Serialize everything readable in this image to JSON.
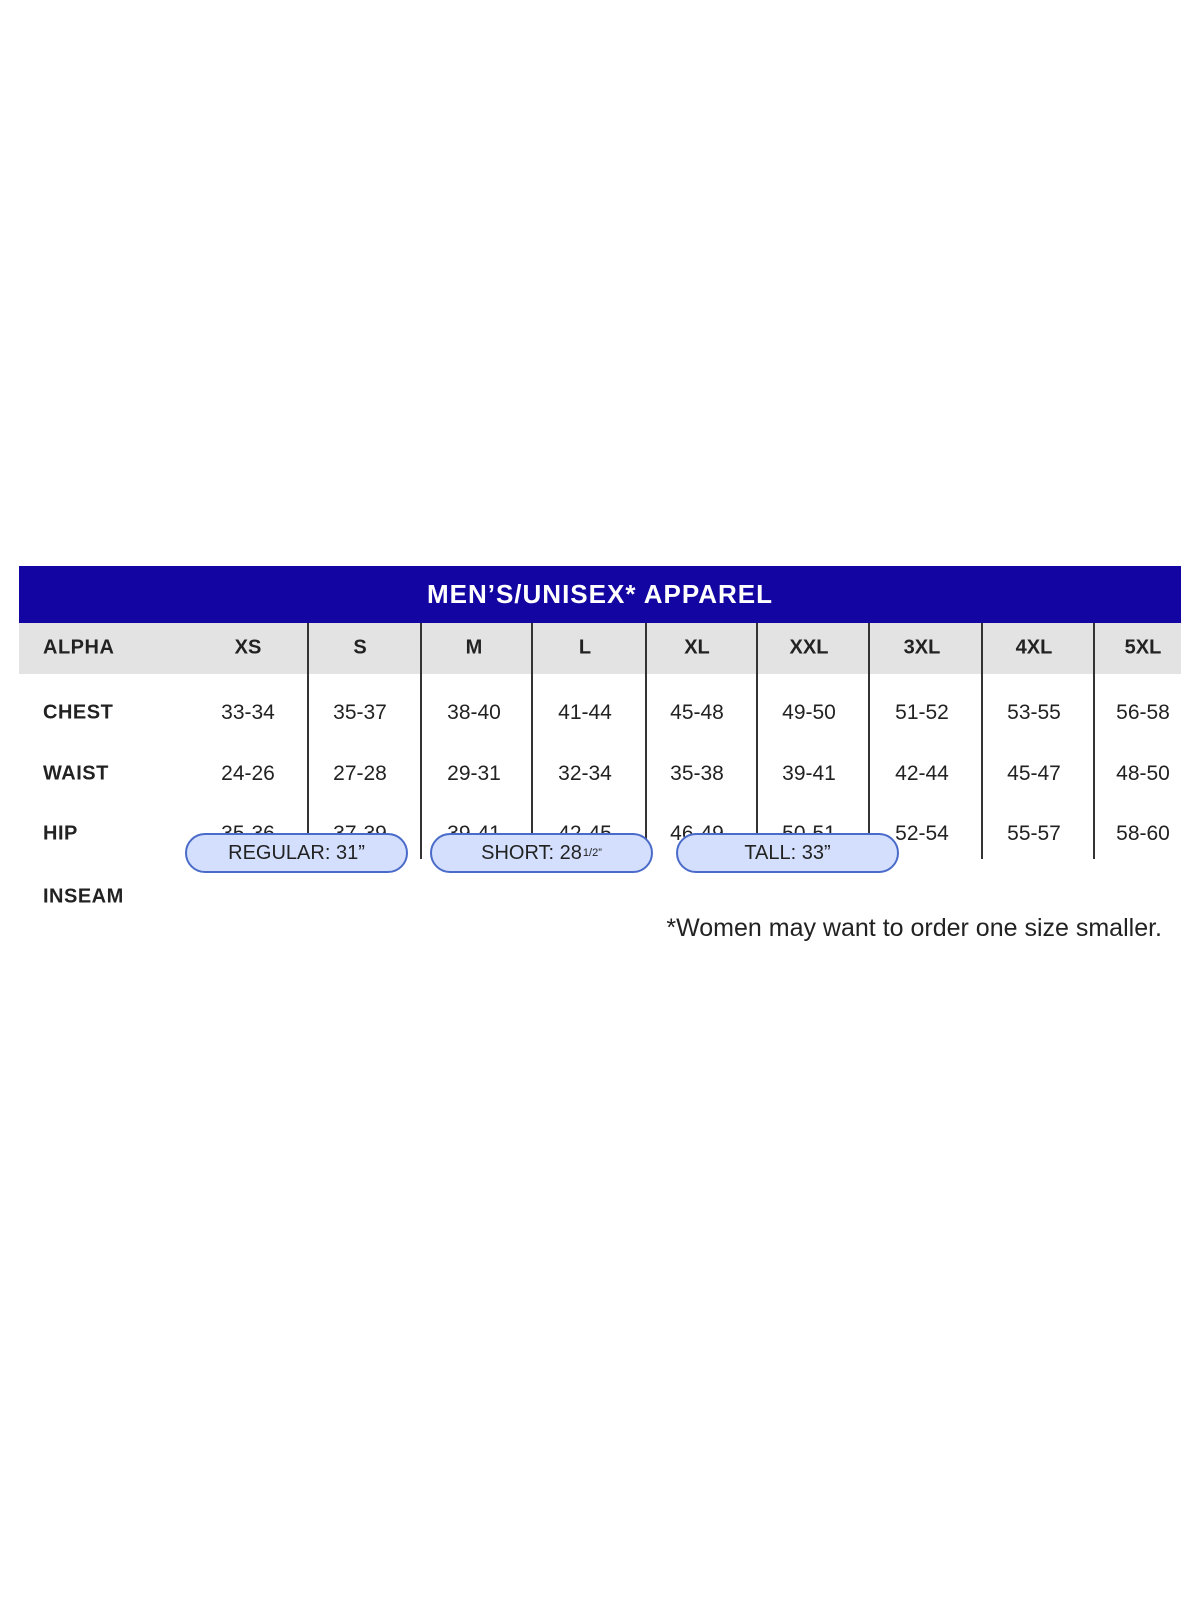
{
  "title": "MEN’S/UNISEX* APPAREL",
  "colors": {
    "banner": "#1205a2",
    "header_row": "#e3e3e3",
    "pill_fill": "#d3dffc",
    "pill_border": "#4a6bc9"
  },
  "header": {
    "label": "ALPHA",
    "sizes": [
      "XS",
      "S",
      "M",
      "L",
      "XL",
      "XXL",
      "3XL",
      "4XL",
      "5XL"
    ]
  },
  "rows": [
    {
      "label": "CHEST",
      "values": [
        "33-34",
        "35-37",
        "38-40",
        "41-44",
        "45-48",
        "49-50",
        "51-52",
        "53-55",
        "56-58"
      ]
    },
    {
      "label": "WAIST",
      "values": [
        "24-26",
        "27-28",
        "29-31",
        "32-34",
        "35-38",
        "39-41",
        "42-44",
        "45-47",
        "48-50"
      ]
    },
    {
      "label": "HIP",
      "values": [
        "35-36",
        "37-39",
        "39-41",
        "42-45",
        "46-49",
        "50-51",
        "52-54",
        "55-57",
        "58-60"
      ]
    }
  ],
  "inseam": {
    "label": "INSEAM",
    "options": [
      {
        "text": "REGULAR: 31”",
        "sup": ""
      },
      {
        "text": "SHORT: 28",
        "sup": "1/2”"
      },
      {
        "text": "TALL: 33”",
        "sup": ""
      }
    ]
  },
  "footnote": "*Women may want to order one size smaller."
}
